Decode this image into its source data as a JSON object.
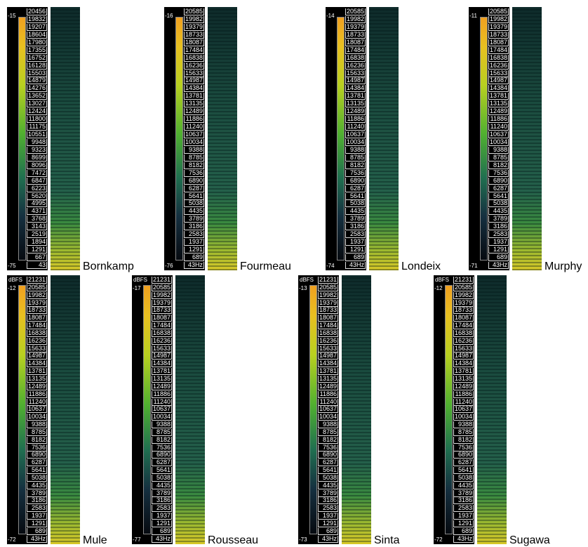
{
  "panels": [
    {
      "name": "Bornkamp",
      "db_max": "-15",
      "db_min": "-75",
      "freq_labels": [
        "20456",
        "19832",
        "19207",
        "18604",
        "17980",
        "17355",
        "16752",
        "16128",
        "15503",
        "14879",
        "14276",
        "13652",
        "13027",
        "12424",
        "11800",
        "11175",
        "10551",
        "9948",
        "9323",
        "8699",
        "8096",
        "7472",
        "6847",
        "6223",
        "5620",
        "4995",
        "4371",
        "3768",
        "3143",
        "2519",
        "1894",
        "1291",
        "667",
        "43"
      ]
    },
    {
      "name": "Fourmeau",
      "db_max": "-16",
      "db_min": "-76",
      "freq_labels": [
        "20585",
        "19982",
        "19379",
        "18733",
        "18087",
        "17484",
        "16838",
        "16236",
        "15633",
        "14987",
        "14384",
        "13781",
        "13135",
        "12489",
        "11886",
        "11240",
        "10637",
        "10034",
        "9388",
        "8785",
        "8182",
        "7536",
        "6890",
        "6287",
        "5641",
        "5038",
        "4435",
        "3789",
        "3186",
        "2583",
        "1937",
        "1291",
        "689",
        "43Hz"
      ]
    },
    {
      "name": "Londeix",
      "db_max": "-14",
      "db_min": "-74",
      "freq_labels": [
        "20585",
        "19982",
        "19379",
        "18733",
        "18087",
        "17484",
        "16838",
        "16236",
        "15633",
        "14987",
        "14384",
        "13781",
        "13135",
        "12489",
        "11886",
        "11240",
        "10637",
        "10034",
        "9388",
        "8785",
        "8182",
        "7536",
        "6890",
        "6287",
        "5641",
        "5038",
        "4435",
        "3789",
        "3186",
        "2583",
        "1937",
        "1291",
        "689",
        "43Hz"
      ]
    },
    {
      "name": "Murphy",
      "db_max": "-11",
      "db_min": "-71",
      "freq_labels": [
        "20585",
        "19982",
        "19379",
        "18733",
        "18087",
        "17484",
        "16838",
        "16236",
        "15633",
        "14987",
        "14384",
        "13781",
        "13135",
        "12489",
        "11886",
        "11240",
        "10637",
        "10034",
        "9388",
        "8785",
        "8182",
        "7536",
        "6890",
        "6287",
        "5641",
        "5038",
        "4435",
        "3789",
        "3186",
        "2583",
        "1937",
        "1291",
        "689",
        "43Hz"
      ]
    },
    {
      "name": "Mule",
      "unit": "dBFS",
      "db_max": "-12",
      "db_min": "-72",
      "freq_labels": [
        "21231",
        "20585",
        "19982",
        "19379",
        "18733",
        "18087",
        "17484",
        "16838",
        "16236",
        "15633",
        "14987",
        "14384",
        "13781",
        "13135",
        "12489",
        "11886",
        "11240",
        "10637",
        "10034",
        "9388",
        "8785",
        "8182",
        "7536",
        "6890",
        "6287",
        "5641",
        "5038",
        "4435",
        "3789",
        "3186",
        "2583",
        "1937",
        "1291",
        "689",
        "43Hz"
      ]
    },
    {
      "name": "Rousseau",
      "unit": "dBFS",
      "db_max": "-17",
      "db_min": "-77",
      "freq_labels": [
        "21231",
        "20585",
        "19982",
        "19379",
        "18733",
        "18087",
        "17484",
        "16838",
        "16236",
        "15633",
        "14987",
        "14384",
        "13781",
        "13135",
        "12489",
        "11886",
        "11240",
        "10637",
        "10034",
        "9388",
        "8785",
        "8182",
        "7536",
        "6890",
        "6287",
        "5641",
        "5038",
        "4435",
        "3789",
        "3186",
        "2583",
        "1937",
        "1291",
        "689",
        "43Hz"
      ]
    },
    {
      "name": "Sinta",
      "unit": "dBFS",
      "db_max": "-13",
      "db_min": "-73",
      "freq_labels": [
        "21231",
        "20585",
        "19982",
        "19379",
        "18733",
        "18087",
        "17484",
        "16838",
        "16236",
        "15633",
        "14987",
        "14384",
        "13781",
        "13135",
        "12489",
        "11886",
        "11240",
        "10637",
        "10034",
        "9388",
        "8785",
        "8182",
        "7536",
        "6890",
        "6287",
        "5641",
        "5038",
        "4435",
        "3789",
        "3186",
        "2583",
        "1937",
        "1291",
        "689",
        "43Hz"
      ]
    },
    {
      "name": "Sugawa",
      "unit": "dBFS",
      "db_max": "-12",
      "db_min": "-72",
      "freq_labels": [
        "21231",
        "20585",
        "19982",
        "19379",
        "18733",
        "18087",
        "17484",
        "16838",
        "16236",
        "15633",
        "14987",
        "14384",
        "13781",
        "13135",
        "12489",
        "11886",
        "11240",
        "10637",
        "10034",
        "9388",
        "8785",
        "8182",
        "7536",
        "6890",
        "6287",
        "5641",
        "5038",
        "4435",
        "3789",
        "3186",
        "2583",
        "1937",
        "1291",
        "689",
        "43Hz"
      ]
    }
  ]
}
